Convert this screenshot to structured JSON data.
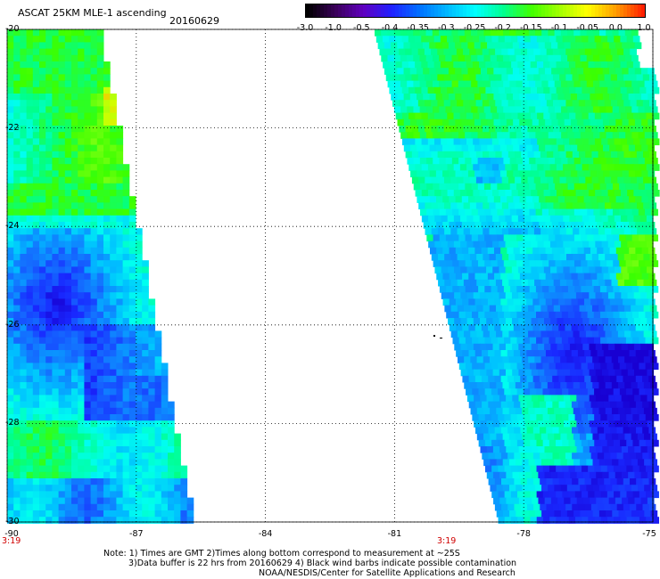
{
  "header": {
    "title": "ASCAT 25KM MLE-1 ascending",
    "date": "20160629"
  },
  "colorbar": {
    "labels": [
      "-3.0",
      "-1.0",
      "-0.5",
      "-0.4",
      "-0.35",
      "-0.3",
      "-0.25",
      "-0.2",
      "-0.15",
      "-0.1",
      "-0.05",
      "0.0",
      "1.0"
    ],
    "colors": [
      "#000000",
      "#3a005a",
      "#6000c0",
      "#2020ff",
      "#0070ff",
      "#00b8ff",
      "#00ffff",
      "#00ff90",
      "#40ff00",
      "#a0ff00",
      "#ffff00",
      "#ffa000",
      "#ff2000"
    ]
  },
  "axes": {
    "lat_labels": [
      "-20",
      "-22",
      "-24",
      "-26",
      "-28",
      "-30"
    ],
    "lon_labels": [
      "-90",
      "-87",
      "-84",
      "-81",
      "-78",
      "-75"
    ],
    "lat_range": [
      -30,
      -20
    ],
    "lon_range": [
      -90,
      -75
    ]
  },
  "times": {
    "left": "3:19",
    "right": "3:19"
  },
  "notes": {
    "line1": "Note: 1) Times are GMT 2)Times along bottom correspond to measurement at ~25S",
    "line2": "3)Data buffer is 22 hrs from 20160629 4) Black wind barbs indicate possible contamination",
    "line3": "NOAA/NESDIS/Center for Satellite Applications and Research"
  }
}
